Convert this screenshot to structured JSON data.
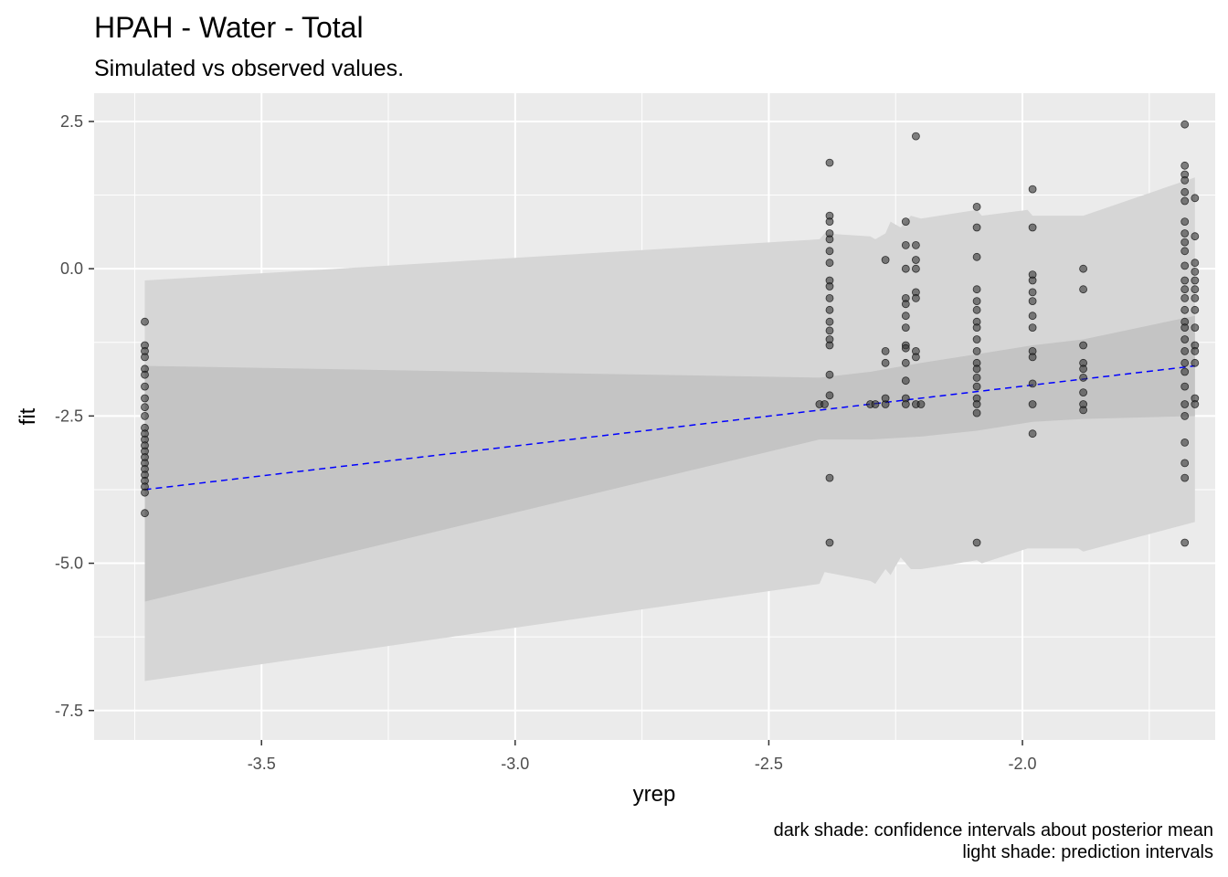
{
  "title": "HPAH - Water - Total",
  "subtitle": "Simulated vs observed values.",
  "caption": {
    "line1": "dark shade: confidence intervals about posterior mean",
    "line2": "light shade: prediction intervals"
  },
  "colors": {
    "panel": "#ebebeb",
    "grid": "#ffffff",
    "light_band": "#d6d6d6",
    "dark_band": "#c4c4c4",
    "trend_line": "#0000ff",
    "point_fill": "#333333"
  },
  "chart_data": {
    "type": "scatter",
    "title": "HPAH - Water - Total",
    "subtitle": "Simulated vs observed values.",
    "xlabel": "yrep",
    "ylabel": "fit",
    "xlim": [
      -3.83,
      -1.62
    ],
    "ylim": [
      -8.0,
      2.98
    ],
    "x_ticks": [
      -3.5,
      -3.0,
      -2.5,
      -2.0
    ],
    "x_tick_labels": [
      "-3.5",
      "-3.0",
      "-2.5",
      "-2.0"
    ],
    "y_ticks": [
      2.5,
      0.0,
      -2.5,
      -5.0,
      -7.5
    ],
    "y_tick_labels": [
      "2.5",
      "0.0",
      "-2.5",
      "-5.0",
      "-7.5"
    ],
    "grid": true,
    "legend": "none",
    "trend_line": {
      "style": "dashed",
      "x": [
        -3.73,
        -1.66
      ],
      "y": [
        -3.75,
        -1.65
      ]
    },
    "prediction_band": {
      "x": [
        -3.73,
        -2.4,
        -2.39,
        -2.3,
        -2.29,
        -2.27,
        -2.26,
        -2.24,
        -2.22,
        -2.2,
        -2.09,
        -2.08,
        -1.99,
        -1.98,
        -1.89,
        -1.88,
        -1.66
      ],
      "upper": [
        -0.2,
        0.5,
        0.6,
        0.55,
        0.5,
        0.6,
        0.8,
        0.7,
        0.9,
        0.85,
        1.0,
        0.9,
        1.0,
        0.9,
        0.9,
        0.9,
        1.55
      ],
      "lower": [
        -7.0,
        -5.35,
        -5.15,
        -5.3,
        -5.35,
        -5.1,
        -5.2,
        -4.9,
        -5.1,
        -5.1,
        -4.95,
        -5.0,
        -4.75,
        -4.75,
        -4.75,
        -4.8,
        -4.3
      ]
    },
    "confidence_band": {
      "x": [
        -3.73,
        -2.4,
        -2.3,
        -2.2,
        -2.09,
        -1.98,
        -1.88,
        -1.66
      ],
      "upper": [
        -1.65,
        -1.85,
        -1.75,
        -1.6,
        -1.45,
        -1.3,
        -1.2,
        -0.8
      ],
      "lower": [
        -5.65,
        -2.9,
        -2.9,
        -2.85,
        -2.75,
        -2.6,
        -2.55,
        -2.5
      ]
    },
    "series": [
      {
        "values": [
          [
            -3.73,
            -0.9
          ],
          [
            -3.73,
            -1.3
          ],
          [
            -3.73,
            -1.4
          ],
          [
            -3.73,
            -1.5
          ],
          [
            -3.73,
            -1.7
          ],
          [
            -3.73,
            -1.8
          ],
          [
            -3.73,
            -2.0
          ],
          [
            -3.73,
            -2.2
          ],
          [
            -3.73,
            -2.35
          ],
          [
            -3.73,
            -2.5
          ],
          [
            -3.73,
            -2.7
          ],
          [
            -3.73,
            -2.8
          ],
          [
            -3.73,
            -2.9
          ],
          [
            -3.73,
            -3.0
          ],
          [
            -3.73,
            -3.1
          ],
          [
            -3.73,
            -3.2
          ],
          [
            -3.73,
            -3.3
          ],
          [
            -3.73,
            -3.4
          ],
          [
            -3.73,
            -3.5
          ],
          [
            -3.73,
            -3.6
          ],
          [
            -3.73,
            -3.7
          ],
          [
            -3.73,
            -3.8
          ],
          [
            -3.73,
            -4.15
          ],
          [
            -2.38,
            1.8
          ],
          [
            -2.38,
            0.9
          ],
          [
            -2.38,
            0.8
          ],
          [
            -2.38,
            0.6
          ],
          [
            -2.38,
            0.5
          ],
          [
            -2.38,
            0.3
          ],
          [
            -2.38,
            0.1
          ],
          [
            -2.38,
            -0.2
          ],
          [
            -2.38,
            -0.3
          ],
          [
            -2.38,
            -0.5
          ],
          [
            -2.38,
            -0.7
          ],
          [
            -2.38,
            -0.9
          ],
          [
            -2.38,
            -1.05
          ],
          [
            -2.38,
            -1.2
          ],
          [
            -2.38,
            -1.3
          ],
          [
            -2.38,
            -1.8
          ],
          [
            -2.38,
            -2.15
          ],
          [
            -2.38,
            -3.55
          ],
          [
            -2.38,
            -4.65
          ],
          [
            -2.4,
            -2.3
          ],
          [
            -2.39,
            -2.3
          ],
          [
            -2.3,
            -2.3
          ],
          [
            -2.29,
            -2.3
          ],
          [
            -2.27,
            -2.3
          ],
          [
            -2.27,
            -2.2
          ],
          [
            -2.27,
            -1.4
          ],
          [
            -2.27,
            -1.6
          ],
          [
            -2.27,
            0.15
          ],
          [
            -2.23,
            0.8
          ],
          [
            -2.23,
            0.4
          ],
          [
            -2.23,
            0.0
          ],
          [
            -2.23,
            -0.5
          ],
          [
            -2.23,
            -0.6
          ],
          [
            -2.23,
            -0.8
          ],
          [
            -2.23,
            -1.0
          ],
          [
            -2.23,
            -1.3
          ],
          [
            -2.23,
            -1.35
          ],
          [
            -2.23,
            -1.6
          ],
          [
            -2.23,
            -1.9
          ],
          [
            -2.23,
            -2.2
          ],
          [
            -2.23,
            -2.3
          ],
          [
            -2.21,
            2.25
          ],
          [
            -2.21,
            0.4
          ],
          [
            -2.21,
            0.15
          ],
          [
            -2.21,
            0.0
          ],
          [
            -2.21,
            -0.4
          ],
          [
            -2.21,
            -0.5
          ],
          [
            -2.21,
            -1.4
          ],
          [
            -2.21,
            -1.5
          ],
          [
            -2.21,
            -2.3
          ],
          [
            -2.2,
            -2.3
          ],
          [
            -2.09,
            1.05
          ],
          [
            -2.09,
            0.7
          ],
          [
            -2.09,
            0.2
          ],
          [
            -2.09,
            -0.35
          ],
          [
            -2.09,
            -0.55
          ],
          [
            -2.09,
            -0.7
          ],
          [
            -2.09,
            -0.9
          ],
          [
            -2.09,
            -1.0
          ],
          [
            -2.09,
            -1.2
          ],
          [
            -2.09,
            -1.4
          ],
          [
            -2.09,
            -1.6
          ],
          [
            -2.09,
            -1.7
          ],
          [
            -2.09,
            -1.85
          ],
          [
            -2.09,
            -2.0
          ],
          [
            -2.09,
            -2.2
          ],
          [
            -2.09,
            -2.3
          ],
          [
            -2.09,
            -2.45
          ],
          [
            -2.09,
            -4.65
          ],
          [
            -1.98,
            1.35
          ],
          [
            -1.98,
            0.7
          ],
          [
            -1.98,
            -0.1
          ],
          [
            -1.98,
            -0.2
          ],
          [
            -1.98,
            -0.4
          ],
          [
            -1.98,
            -0.55
          ],
          [
            -1.98,
            -0.8
          ],
          [
            -1.98,
            -1.0
          ],
          [
            -1.98,
            -1.4
          ],
          [
            -1.98,
            -1.5
          ],
          [
            -1.98,
            -1.95
          ],
          [
            -1.98,
            -2.3
          ],
          [
            -1.98,
            -2.8
          ],
          [
            -1.88,
            0.0
          ],
          [
            -1.88,
            -0.35
          ],
          [
            -1.88,
            -1.3
          ],
          [
            -1.88,
            -1.6
          ],
          [
            -1.88,
            -1.7
          ],
          [
            -1.88,
            -1.85
          ],
          [
            -1.88,
            -2.1
          ],
          [
            -1.88,
            -2.3
          ],
          [
            -1.88,
            -2.4
          ],
          [
            -1.68,
            2.45
          ],
          [
            -1.68,
            1.75
          ],
          [
            -1.68,
            1.6
          ],
          [
            -1.68,
            1.5
          ],
          [
            -1.68,
            1.3
          ],
          [
            -1.68,
            1.15
          ],
          [
            -1.68,
            0.8
          ],
          [
            -1.68,
            0.6
          ],
          [
            -1.68,
            0.45
          ],
          [
            -1.68,
            0.3
          ],
          [
            -1.68,
            0.05
          ],
          [
            -1.68,
            -0.2
          ],
          [
            -1.68,
            -0.35
          ],
          [
            -1.68,
            -0.5
          ],
          [
            -1.68,
            -0.7
          ],
          [
            -1.68,
            -0.9
          ],
          [
            -1.68,
            -1.0
          ],
          [
            -1.68,
            -1.2
          ],
          [
            -1.68,
            -1.4
          ],
          [
            -1.68,
            -1.6
          ],
          [
            -1.68,
            -1.75
          ],
          [
            -1.68,
            -2.0
          ],
          [
            -1.68,
            -2.3
          ],
          [
            -1.68,
            -2.5
          ],
          [
            -1.68,
            -2.95
          ],
          [
            -1.68,
            -3.3
          ],
          [
            -1.68,
            -3.55
          ],
          [
            -1.68,
            -4.65
          ],
          [
            -1.66,
            1.2
          ],
          [
            -1.66,
            0.55
          ],
          [
            -1.66,
            0.1
          ],
          [
            -1.66,
            -0.05
          ],
          [
            -1.66,
            -0.2
          ],
          [
            -1.66,
            -0.35
          ],
          [
            -1.66,
            -0.5
          ],
          [
            -1.66,
            -0.7
          ],
          [
            -1.66,
            -1.0
          ],
          [
            -1.66,
            -1.3
          ],
          [
            -1.66,
            -1.4
          ],
          [
            -1.66,
            -1.6
          ],
          [
            -1.66,
            -2.2
          ],
          [
            -1.66,
            -2.3
          ]
        ]
      }
    ]
  }
}
